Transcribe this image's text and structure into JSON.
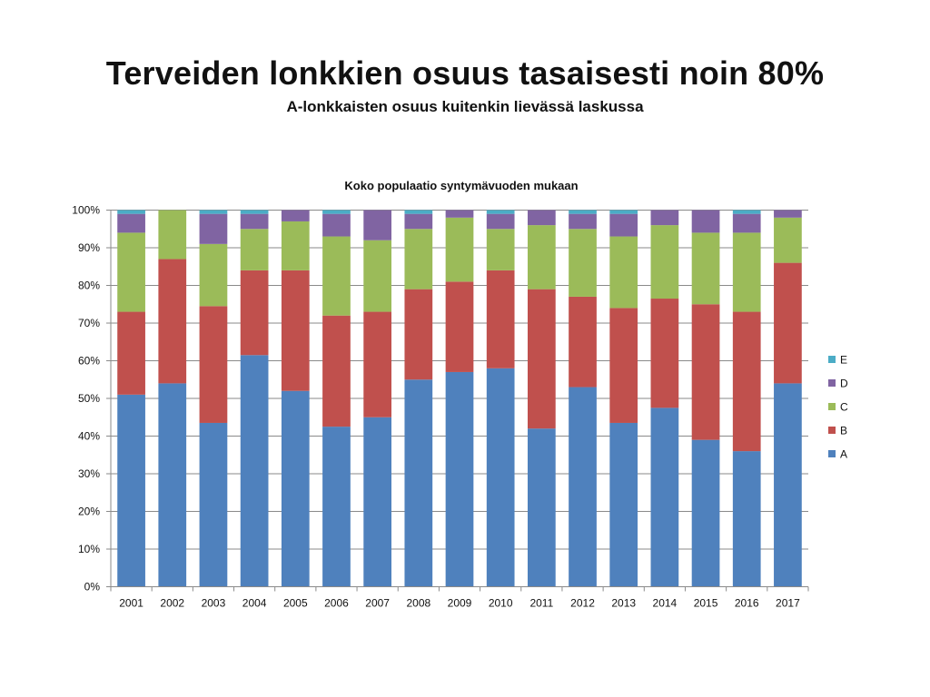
{
  "slide": {
    "title": "Terveiden lonkkien osuus tasaisesti noin 80%",
    "subtitle": "A-lonkkaisten osuus kuitenkin lievässä laskussa"
  },
  "colors": {
    "A": "#4f81bd",
    "B": "#c0504d",
    "C": "#9bbb59",
    "D": "#8064a2",
    "E": "#4bacc6",
    "grid": "#8a8a8a"
  },
  "chart_data": {
    "type": "bar",
    "stacked": "percent",
    "title": "Koko populaatio syntymävuoden mukaan",
    "xlabel": "",
    "ylabel": "",
    "ylim": [
      0,
      100
    ],
    "yticks": [
      "0%",
      "10%",
      "20%",
      "30%",
      "40%",
      "50%",
      "60%",
      "70%",
      "80%",
      "90%",
      "100%"
    ],
    "grid": true,
    "legend_position": "right",
    "categories": [
      "2001",
      "2002",
      "2003",
      "2004",
      "2005",
      "2006",
      "2007",
      "2008",
      "2009",
      "2010",
      "2011",
      "2012",
      "2013",
      "2014",
      "2015",
      "2016",
      "2017"
    ],
    "series": [
      {
        "name": "A",
        "values": [
          51,
          54,
          43.5,
          61.5,
          52,
          42.5,
          45,
          55,
          57,
          58,
          42,
          53,
          43.5,
          47.5,
          39,
          36,
          54
        ]
      },
      {
        "name": "B",
        "values": [
          22,
          33,
          31,
          22.5,
          32,
          29.5,
          28,
          24,
          24,
          26,
          37,
          24,
          30.5,
          29,
          36,
          37,
          32
        ]
      },
      {
        "name": "C",
        "values": [
          21,
          13,
          16.5,
          11,
          13,
          21,
          19,
          16,
          17,
          11,
          17,
          18,
          19,
          19.5,
          19,
          21,
          12
        ]
      },
      {
        "name": "D",
        "values": [
          5,
          0,
          8,
          4,
          3,
          6,
          8,
          4,
          2,
          4,
          4,
          4,
          6,
          4,
          6,
          5,
          2
        ]
      },
      {
        "name": "E",
        "values": [
          1,
          0,
          1,
          1,
          0,
          1,
          0,
          1,
          0,
          1,
          0,
          1,
          1,
          0,
          0,
          1,
          0
        ]
      }
    ]
  }
}
